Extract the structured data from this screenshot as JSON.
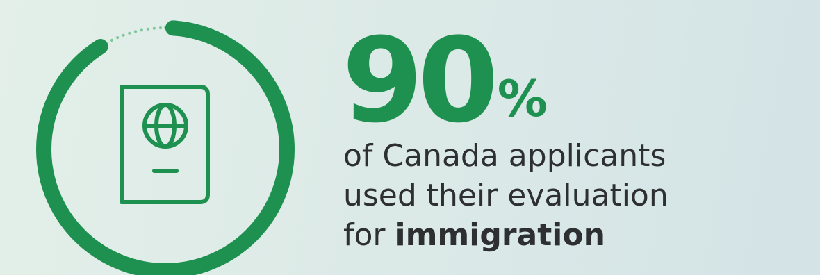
{
  "stat": {
    "percent": 90,
    "value": "90",
    "unit": "%",
    "lines": [
      "of Canada applicants",
      "used their evaluation"
    ],
    "last_prefix": "for ",
    "last_emphasis": "immigration"
  },
  "icons": {
    "center": "passport-icon"
  },
  "colors": {
    "accent": "#1e9150",
    "text": "#2d2f31",
    "dots": "#7ec79b"
  }
}
